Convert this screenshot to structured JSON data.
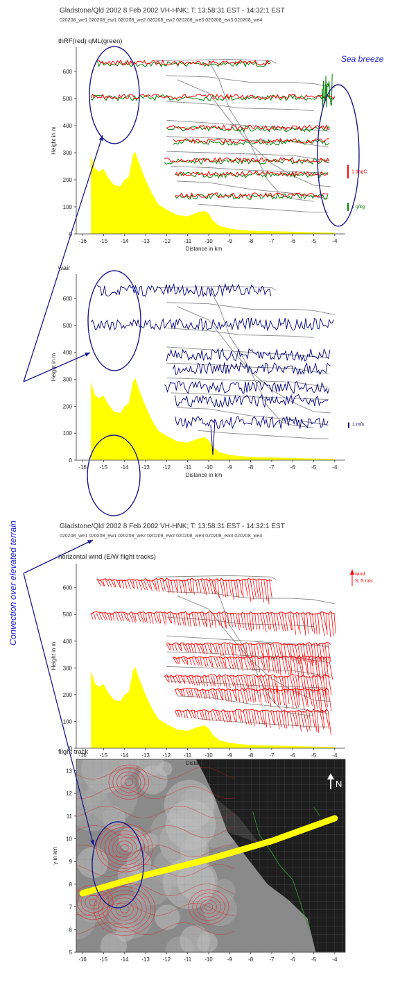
{
  "header1": {
    "title": "Gladstone/Qld 2002 8 Feb 2002  VH-HNK; T: 13:58:31 EST - 14:32:1 EST",
    "subtitle": "020208_we1 020208_ew1 020208_we2 020208_ew2 020208_we3 020208_ew3 020208_we4"
  },
  "header2": {
    "title": "Gladstone/Qld 2002 8 Feb 2002  VH-HNK; T: 13:58:31 EST - 14:32:1 EST",
    "subtitle": "020208_we1 020208_ew1 020208_we2 020208_ew2 020208_we3 020208_ew3 020208_we4"
  },
  "annotations": {
    "sea_breeze": "Sea breeze",
    "convection": "Convection over elevated terrain",
    "north": "N"
  },
  "legends": {
    "temp": "1 degC",
    "humidity": "1 g/kg",
    "vertical_wind": "1 m/s",
    "wind_line1": "wind",
    "wind_line2": "S, 5 m/s"
  },
  "colors": {
    "terrain": "#ffff00",
    "temperature": "#ff0000",
    "humidity": "#008000",
    "vertical_wind": "#000080",
    "horizontal_wind": "#ff0000",
    "ellipse": "#1a1a8c",
    "annotation": "#2222cc",
    "track": "#ffff00"
  },
  "chart_data": [
    {
      "type": "line",
      "title": "thRF(red) qML(green)",
      "xlabel": "Distance in km",
      "ylabel": "Height in m",
      "xlim": [
        -16.3,
        -3.5
      ],
      "ylim": [
        0,
        690
      ],
      "xticks": [
        -16,
        -15,
        -14,
        -13,
        -12,
        -11,
        -10,
        -9,
        -8,
        -7,
        -6,
        -5,
        -4
      ],
      "yticks": [
        0,
        100,
        200,
        300,
        400,
        500,
        600
      ],
      "terrain": {
        "x": [
          -15.6,
          -15.4,
          -15.2,
          -15.0,
          -14.8,
          -14.5,
          -14.2,
          -14.0,
          -13.8,
          -13.6,
          -13.5,
          -13.3,
          -13.0,
          -12.7,
          -12.4,
          -12.0,
          -11.5,
          -11.0,
          -10.5,
          -10.2,
          -10.0,
          -9.8,
          -9.5,
          -9.0,
          -8.5,
          -8.0,
          -7.0,
          -6.0,
          -5.0,
          -4.0
        ],
        "y": [
          290,
          240,
          230,
          240,
          210,
          180,
          175,
          200,
          210,
          290,
          305,
          260,
          200,
          150,
          110,
          90,
          70,
          65,
          80,
          85,
          75,
          50,
          30,
          20,
          15,
          12,
          10,
          8,
          6,
          5
        ]
      },
      "flight_legs": [
        {
          "name": "we4",
          "x": [
            -15.3,
            -7.0
          ],
          "height": 630
        },
        {
          "name": "ew3",
          "x": [
            -15.6,
            -4.0
          ],
          "height": 505
        },
        {
          "name": "we3",
          "x": [
            -12.0,
            -4.2
          ],
          "height": 390
        },
        {
          "name": "ew2",
          "x": [
            -11.7,
            -4.2
          ],
          "height": 340
        },
        {
          "name": "we2",
          "x": [
            -12.1,
            -4.2
          ],
          "height": 270
        },
        {
          "name": "ew1",
          "x": [
            -11.6,
            -4.3
          ],
          "height": 220
        },
        {
          "name": "we1",
          "x": [
            -11.6,
            -4.3
          ],
          "height": 140
        }
      ],
      "series": [
        {
          "name": "thRF",
          "color": "#ff0000"
        },
        {
          "name": "qML",
          "color": "#008000"
        }
      ]
    },
    {
      "type": "line",
      "title": "wair",
      "xlabel": "Distance in km",
      "ylabel": "Height in m",
      "xlim": [
        -16.3,
        -3.5
      ],
      "ylim": [
        0,
        690
      ],
      "xticks": [
        -16,
        -15,
        -14,
        -13,
        -12,
        -11,
        -10,
        -9,
        -8,
        -7,
        -6,
        -5,
        -4
      ],
      "yticks": [
        0,
        100,
        200,
        300,
        400,
        500,
        600
      ],
      "series": [
        {
          "name": "wair",
          "color": "#000080"
        }
      ]
    },
    {
      "type": "line",
      "title": "horizontal wind (E/W flight tracks)",
      "xlabel": "Distance in km",
      "ylabel": "Height in m",
      "xlim": [
        -16.3,
        -3.5
      ],
      "ylim": [
        0,
        690
      ],
      "xticks": [
        -16,
        -15,
        -14,
        -13,
        -12,
        -11,
        -10,
        -9,
        -8,
        -7,
        -6,
        -5,
        -4
      ],
      "yticks": [
        0,
        100,
        200,
        300,
        400,
        500,
        600
      ],
      "series": [
        {
          "name": "horizontal wind",
          "color": "#ff0000"
        }
      ]
    },
    {
      "type": "heatmap",
      "title": "flight track",
      "xlabel": "",
      "ylabel": "y in km",
      "xlim": [
        -16.3,
        -3.5
      ],
      "ylim": [
        5,
        13.5
      ],
      "xticks": [
        -16,
        -15,
        -14,
        -13,
        -12,
        -11,
        -10,
        -9,
        -8,
        -7,
        -6,
        -5,
        -4
      ],
      "yticks": [
        5,
        6,
        7,
        8,
        9,
        10,
        11,
        12,
        13
      ],
      "track": {
        "x": [
          -16.0,
          -13.0,
          -10.0,
          -7.0,
          -4.0
        ],
        "y": [
          7.6,
          8.4,
          9.1,
          9.9,
          10.9
        ]
      },
      "contour_centers": [
        {
          "x": -14.0,
          "y": 9.6
        },
        {
          "x": -13.8,
          "y": 12.5
        },
        {
          "x": -14.0,
          "y": 6.9
        },
        {
          "x": -10.0,
          "y": 7.0
        },
        {
          "x": -15.5,
          "y": 7.2
        }
      ]
    }
  ]
}
